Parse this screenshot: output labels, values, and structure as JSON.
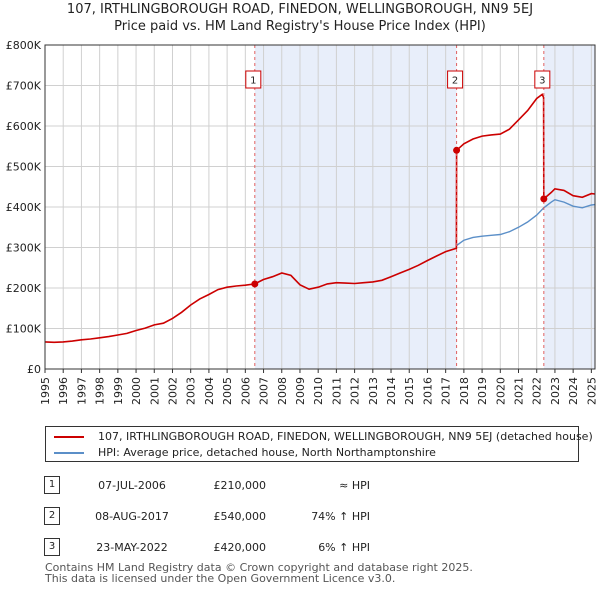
{
  "title_line1": "107, IRTHLINGBOROUGH ROAD, FINEDON, WELLINGBOROUGH, NN9 5EJ",
  "title_line2": "Price paid vs. HM Land Registry's House Price Index (HPI)",
  "chart_data": {
    "type": "line",
    "title": "107, IRTHLINGBOROUGH ROAD, FINEDON, WELLINGBOROUGH, NN9 5EJ",
    "subtitle": "Price paid vs. HM Land Registry's House Price Index (HPI)",
    "x_range": [
      1995,
      2025.2
    ],
    "ylim": [
      0,
      800000
    ],
    "y_ticks": [
      0,
      100000,
      200000,
      300000,
      400000,
      500000,
      600000,
      700000,
      800000
    ],
    "y_tick_labels": [
      "£0",
      "£100K",
      "£200K",
      "£300K",
      "£400K",
      "£500K",
      "£600K",
      "£700K",
      "£800K"
    ],
    "x_ticks": [
      1995,
      1996,
      1997,
      1998,
      1999,
      2000,
      2001,
      2002,
      2003,
      2004,
      2005,
      2006,
      2007,
      2008,
      2009,
      2010,
      2011,
      2012,
      2013,
      2014,
      2015,
      2016,
      2017,
      2018,
      2019,
      2020,
      2021,
      2022,
      2023,
      2024,
      2025
    ],
    "x_tick_labels": [
      "1995",
      "1996",
      "1997",
      "1998",
      "1999",
      "2000",
      "2001",
      "2002",
      "2003",
      "2004",
      "2005",
      "2006",
      "2007",
      "2008",
      "2009",
      "2010",
      "2011",
      "2012",
      "2013",
      "2014",
      "2015",
      "2016",
      "2017",
      "2018",
      "2019",
      "2020",
      "2021",
      "2022",
      "2023",
      "2024",
      "2025"
    ],
    "grid": true,
    "shaded_ranges": [
      [
        2006.52,
        2017.6
      ],
      [
        2022.39,
        2025.2
      ]
    ],
    "series": [
      {
        "name": "107, IRTHLINGBOROUGH ROAD, FINEDON, WELLINGBOROUGH, NN9 5EJ (detached house)",
        "color": "#cc0000",
        "points": [
          [
            1995,
            67000
          ],
          [
            1995.5,
            66000
          ],
          [
            1996,
            67000
          ],
          [
            1996.5,
            69000
          ],
          [
            1997,
            72000
          ],
          [
            1997.5,
            74000
          ],
          [
            1998,
            77000
          ],
          [
            1998.5,
            80000
          ],
          [
            1999,
            84000
          ],
          [
            1999.5,
            88000
          ],
          [
            2000,
            95000
          ],
          [
            2000.5,
            101000
          ],
          [
            2001,
            109000
          ],
          [
            2001.5,
            113000
          ],
          [
            2002,
            125000
          ],
          [
            2002.5,
            140000
          ],
          [
            2003,
            158000
          ],
          [
            2003.5,
            173000
          ],
          [
            2004,
            184000
          ],
          [
            2004.5,
            196000
          ],
          [
            2005,
            202000
          ],
          [
            2005.5,
            205000
          ],
          [
            2006,
            207000
          ],
          [
            2006.52,
            210000
          ],
          [
            2007,
            221000
          ],
          [
            2007.5,
            228000
          ],
          [
            2008,
            237000
          ],
          [
            2008.5,
            231000
          ],
          [
            2009,
            208000
          ],
          [
            2009.5,
            197000
          ],
          [
            2010,
            202000
          ],
          [
            2010.5,
            210000
          ],
          [
            2011,
            213000
          ],
          [
            2011.5,
            212000
          ],
          [
            2012,
            211000
          ],
          [
            2012.5,
            213000
          ],
          [
            2013,
            215000
          ],
          [
            2013.5,
            219000
          ],
          [
            2014,
            228000
          ],
          [
            2014.5,
            237000
          ],
          [
            2015,
            246000
          ],
          [
            2015.5,
            256000
          ],
          [
            2016,
            268000
          ],
          [
            2016.5,
            279000
          ],
          [
            2017,
            290000
          ],
          [
            2017.59,
            298000
          ],
          [
            2017.6,
            540000
          ],
          [
            2018,
            556000
          ],
          [
            2018.5,
            568000
          ],
          [
            2019,
            575000
          ],
          [
            2019.5,
            578000
          ],
          [
            2020,
            580000
          ],
          [
            2020.5,
            592000
          ],
          [
            2021,
            615000
          ],
          [
            2021.5,
            638000
          ],
          [
            2022,
            668000
          ],
          [
            2022.3,
            678000
          ],
          [
            2022.38,
            670000
          ],
          [
            2022.39,
            420000
          ],
          [
            2022.8,
            436000
          ],
          [
            2023,
            445000
          ],
          [
            2023.5,
            441000
          ],
          [
            2024,
            428000
          ],
          [
            2024.5,
            424000
          ],
          [
            2025,
            433000
          ],
          [
            2025.2,
            432000
          ]
        ]
      },
      {
        "name": "HPI: Average price, detached house, North Northamptonshire",
        "color": "#5b8fc8",
        "points": [
          [
            2017.6,
            305000
          ],
          [
            2018,
            318000
          ],
          [
            2018.5,
            325000
          ],
          [
            2019,
            328000
          ],
          [
            2019.5,
            330000
          ],
          [
            2020,
            332000
          ],
          [
            2020.5,
            339000
          ],
          [
            2021,
            350000
          ],
          [
            2021.5,
            363000
          ],
          [
            2022,
            380000
          ],
          [
            2022.39,
            398000
          ],
          [
            2022.8,
            412000
          ],
          [
            2023,
            418000
          ],
          [
            2023.5,
            412000
          ],
          [
            2024,
            402000
          ],
          [
            2024.5,
            398000
          ],
          [
            2025,
            405000
          ],
          [
            2025.2,
            406000
          ]
        ]
      }
    ],
    "sales": [
      {
        "label": "1",
        "x": 2006.52,
        "y": 210000
      },
      {
        "label": "2",
        "x": 2017.6,
        "y": 540000
      },
      {
        "label": "3",
        "x": 2022.39,
        "y": 420000
      }
    ]
  },
  "legend": {
    "property_label": "107, IRTHLINGBOROUGH ROAD, FINEDON, WELLINGBOROUGH, NN9 5EJ (detached house)",
    "hpi_label": "HPI: Average price, detached house, North Northamptonshire",
    "property_color": "#cc0000",
    "hpi_color": "#5b8fc8"
  },
  "transactions": [
    {
      "num": "1",
      "date": "07-JUL-2006",
      "price": "£210,000",
      "relation": "≈ HPI"
    },
    {
      "num": "2",
      "date": "08-AUG-2017",
      "price": "£540,000",
      "relation": "74% ↑ HPI"
    },
    {
      "num": "3",
      "date": "23-MAY-2022",
      "price": "£420,000",
      "relation": "6% ↑ HPI"
    }
  ],
  "footer": {
    "line1": "Contains HM Land Registry data © Crown copyright and database right 2025.",
    "line2": "This data is licensed under the Open Government Licence v3.0."
  }
}
